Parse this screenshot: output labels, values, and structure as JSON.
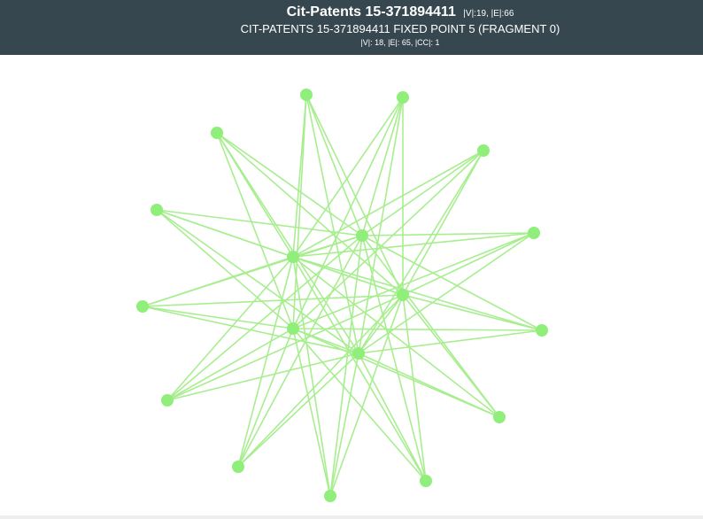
{
  "header": {
    "title": "Cit-Patents 15-371894411",
    "title_stats": "|V|:19, |E|:66",
    "subtitle": "CIT-PATENTS 15-371894411 FIXED POINT 5 (FRAGMENT 0)",
    "stats": "|V|: 18, |E|: 65, |CC|: 1"
  },
  "graph": {
    "node_color": "#90ee7a",
    "edge_color": "#a8ee90",
    "nodes": [
      {
        "id": "n0"
      },
      {
        "id": "n1"
      },
      {
        "id": "n2"
      },
      {
        "id": "n3"
      },
      {
        "id": "n4"
      },
      {
        "id": "n5"
      },
      {
        "id": "n6"
      },
      {
        "id": "n7"
      },
      {
        "id": "n8"
      },
      {
        "id": "n9"
      },
      {
        "id": "n10"
      },
      {
        "id": "n11"
      },
      {
        "id": "n12"
      },
      {
        "id": "n13"
      },
      {
        "id": "h1"
      },
      {
        "id": "h2"
      },
      {
        "id": "h3"
      },
      {
        "id": "h4"
      }
    ]
  }
}
